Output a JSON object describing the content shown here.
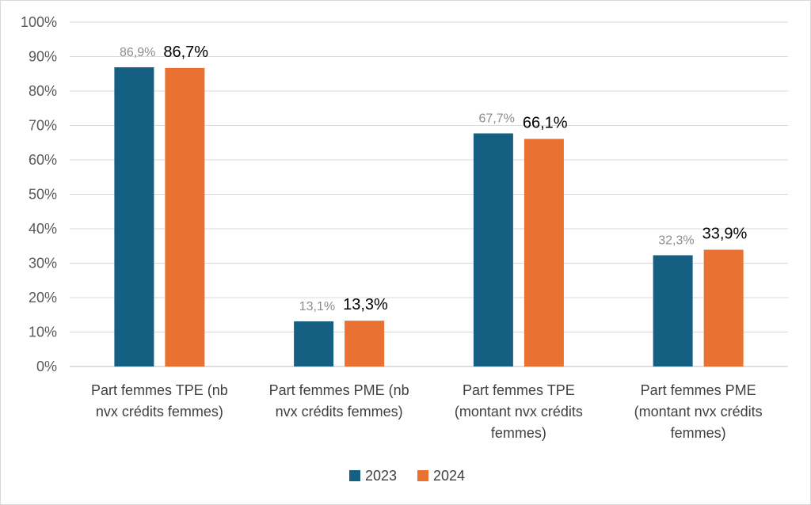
{
  "chart_data": {
    "type": "bar",
    "categories": [
      [
        "Part femmes TPE (nb",
        "nvx crédits femmes)"
      ],
      [
        "Part femmes PME  (nb",
        "nvx crédits femmes)"
      ],
      [
        "Part femmes TPE",
        "(montant nvx crédits",
        "femmes)"
      ],
      [
        "Part femmes PME",
        "(montant nvx crédits",
        "femmes)"
      ]
    ],
    "series": [
      {
        "name": "2023",
        "color": "#156082",
        "values": [
          86.9,
          13.1,
          67.7,
          32.3
        ],
        "labels": [
          "86,9%",
          "13,1%",
          "67,7%",
          "32,3%"
        ],
        "label_color": "#8c8c8c"
      },
      {
        "name": "2024",
        "color": "#e97132",
        "values": [
          86.7,
          13.3,
          66.1,
          33.9
        ],
        "labels": [
          "86,7%",
          "13,3%",
          "66,1%",
          "33,9%"
        ],
        "label_color": "#000000"
      }
    ],
    "yticks": [
      "0%",
      "10%",
      "20%",
      "30%",
      "40%",
      "50%",
      "60%",
      "70%",
      "80%",
      "90%",
      "100%"
    ],
    "ylim": [
      0,
      100
    ],
    "grid": true,
    "legend_position": "bottom",
    "title": "",
    "xlabel": "",
    "ylabel": ""
  }
}
